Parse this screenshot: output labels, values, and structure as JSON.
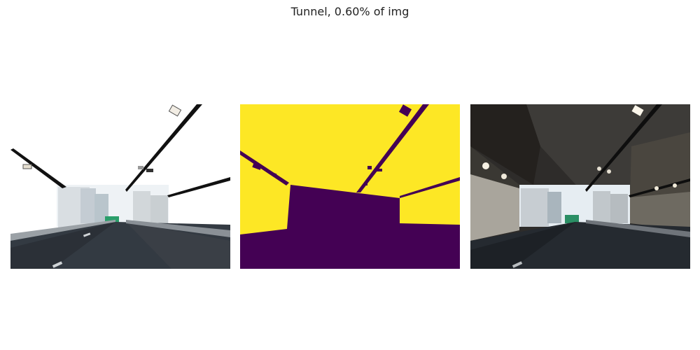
{
  "figure": {
    "title": "Tunnel, 0.60% of img"
  },
  "panels": [
    {
      "name": "overexposed-image",
      "content": "bright tunnel exit road scene"
    },
    {
      "name": "segmentation-mask",
      "content": "binary mask",
      "colors": {
        "foreground": "#fde725",
        "background": "#440154"
      }
    },
    {
      "name": "corrected-image",
      "content": "tunnel interior road scene"
    }
  ]
}
